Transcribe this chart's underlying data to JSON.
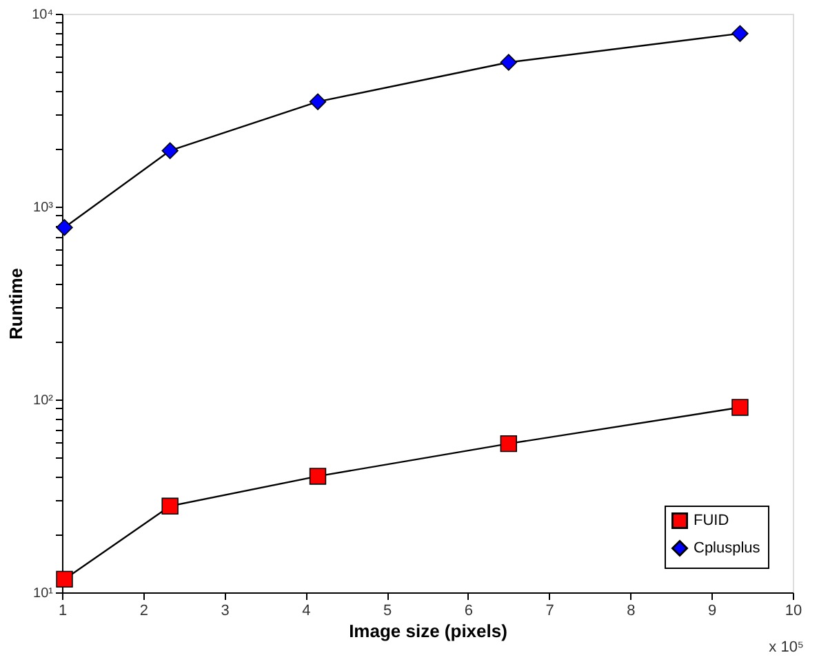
{
  "chart_data": {
    "type": "line",
    "xlabel": "Image size (pixels)",
    "ylabel": "Runtime",
    "annotations": [
      "x 10⁵"
    ],
    "x": [
      1.03,
      2.33,
      4.15,
      6.5,
      9.35
    ],
    "series": [
      {
        "name": "FUID",
        "color": "#ff0000",
        "marker": "square",
        "values": [
          11.7,
          28,
          40,
          59,
          91
        ]
      },
      {
        "name": "Cplusplus",
        "color": "#0000ff",
        "marker": "diamond",
        "values": [
          780,
          1950,
          3500,
          5600,
          7900
        ]
      }
    ],
    "log": "y",
    "xlim": [
      1,
      10
    ],
    "ylim": [
      10,
      10000
    ],
    "xticks": [
      1,
      2,
      3,
      4,
      5,
      6,
      7,
      8,
      9,
      10
    ],
    "yticks": [
      {
        "value": 10,
        "label": "10¹"
      },
      {
        "value": 100,
        "label": "10²"
      },
      {
        "value": 1000,
        "label": "10³"
      },
      {
        "value": 10000,
        "label": "10⁴"
      },
      {
        "value": 20,
        "label": null
      },
      {
        "value": 30,
        "label": null
      },
      {
        "value": 40,
        "label": null
      },
      {
        "value": 50,
        "label": null
      },
      {
        "value": 60,
        "label": null
      },
      {
        "value": 70,
        "label": null
      },
      {
        "value": 80,
        "label": null
      },
      {
        "value": 90,
        "label": null
      },
      {
        "value": 200,
        "label": null
      },
      {
        "value": 300,
        "label": null
      },
      {
        "value": 400,
        "label": null
      },
      {
        "value": 500,
        "label": null
      },
      {
        "value": 600,
        "label": null
      },
      {
        "value": 700,
        "label": null
      },
      {
        "value": 800,
        "label": null
      },
      {
        "value": 900,
        "label": null
      },
      {
        "value": 2000,
        "label": null
      },
      {
        "value": 3000,
        "label": null
      },
      {
        "value": 4000,
        "label": null
      },
      {
        "value": 5000,
        "label": null
      },
      {
        "value": 6000,
        "label": null
      },
      {
        "value": 7000,
        "label": null
      },
      {
        "value": 8000,
        "label": null
      },
      {
        "value": 9000,
        "label": null
      }
    ],
    "grid": false,
    "legend": "bottom right",
    "line_style": "solid"
  }
}
